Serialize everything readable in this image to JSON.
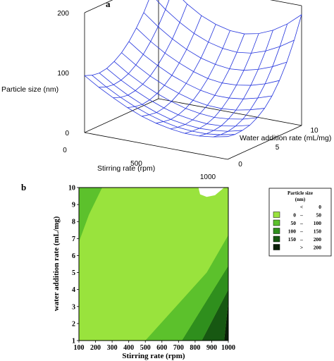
{
  "chart_data": [
    {
      "panel": "a",
      "type": "surface3d",
      "xlabel": "Stirring rate (rpm)",
      "ylabel": "Water addition rate (mL/mg)",
      "zlabel": "Particle size (nm)",
      "x_ticks": [
        "0",
        "500",
        "1000"
      ],
      "y_ticks": [
        "0",
        "5",
        "10"
      ],
      "z_ticks": [
        "0",
        "100",
        "200"
      ],
      "xlim": [
        0,
        1000
      ],
      "ylim": [
        0,
        10
      ],
      "zlim": [
        0,
        200
      ],
      "surface": {
        "x": [
          0,
          100,
          200,
          300,
          400,
          500,
          600,
          700,
          800,
          900,
          1000
        ],
        "y": [
          0,
          1,
          2,
          3,
          4,
          5,
          6,
          7,
          8,
          9,
          10
        ],
        "z": [
          [
            95,
            80,
            67,
            55,
            45,
            38,
            33,
            30,
            30,
            33,
            38
          ],
          [
            90,
            75,
            62,
            51,
            42,
            35,
            30,
            28,
            28,
            31,
            36
          ],
          [
            88,
            73,
            60,
            49,
            40,
            33,
            29,
            27,
            28,
            31,
            37
          ],
          [
            90,
            75,
            62,
            51,
            42,
            35,
            31,
            29,
            30,
            34,
            40
          ],
          [
            96,
            80,
            67,
            56,
            47,
            40,
            36,
            34,
            36,
            40,
            47
          ],
          [
            105,
            89,
            75,
            64,
            55,
            48,
            44,
            43,
            45,
            50,
            57
          ],
          [
            118,
            101,
            87,
            75,
            66,
            59,
            55,
            55,
            58,
            64,
            72
          ],
          [
            135,
            117,
            102,
            90,
            80,
            73,
            70,
            71,
            75,
            82,
            92
          ],
          [
            155,
            136,
            120,
            107,
            97,
            91,
            88,
            90,
            96,
            105,
            117
          ],
          [
            180,
            159,
            142,
            128,
            118,
            112,
            110,
            113,
            121,
            133,
            148
          ],
          [
            208,
            186,
            167,
            152,
            142,
            136,
            135,
            140,
            150,
            165,
            185
          ]
        ],
        "mesh_color": "#2233dd"
      }
    },
    {
      "panel": "b",
      "type": "contour",
      "xlabel": "Stirring rate (rpm)",
      "ylabel": "water addition rate (mL/mg)",
      "x_ticks": [
        100,
        200,
        300,
        400,
        500,
        600,
        700,
        800,
        900,
        1000
      ],
      "y_ticks": [
        1,
        2,
        3,
        4,
        5,
        6,
        7,
        8,
        9,
        10
      ],
      "xlim": [
        100,
        1000
      ],
      "ylim": [
        1,
        10
      ],
      "legend": {
        "title": [
          "Particle size",
          "(nm)"
        ],
        "placement": "right",
        "entries": [
          {
            "lo": "",
            "op": "<",
            "hi": "0",
            "color": "#ffffff"
          },
          {
            "lo": "0",
            "op": "–",
            "hi": "50",
            "color": "#99e33d"
          },
          {
            "lo": "50",
            "op": "–",
            "hi": "100",
            "color": "#5cc12c"
          },
          {
            "lo": "100",
            "op": "–",
            "hi": "150",
            "color": "#2f8f1d"
          },
          {
            "lo": "150",
            "op": "–",
            "hi": "200",
            "color": "#175812"
          },
          {
            "lo": "",
            "op": ">",
            "hi": "200",
            "color": "#0a2008"
          }
        ]
      },
      "regions": [
        {
          "range": "> 200",
          "color": "#0a2008",
          "polygon": [
            [
              975,
              1
            ],
            [
              1000,
              1
            ],
            [
              1000,
              3.3
            ]
          ]
        },
        {
          "range": "150 – 200",
          "color": "#175812",
          "polygon": [
            [
              840,
              1
            ],
            [
              975,
              1
            ],
            [
              1000,
              3.3
            ],
            [
              1000,
              4.0
            ]
          ]
        },
        {
          "range": "100 – 150",
          "color": "#2f8f1d",
          "polygon": [
            [
              720,
              1
            ],
            [
              840,
              1
            ],
            [
              1000,
              4.0
            ],
            [
              1000,
              5.4
            ]
          ]
        },
        {
          "range": "50 – 100",
          "color": "#5cc12c",
          "polygon": [
            [
              500,
              1
            ],
            [
              720,
              1
            ],
            [
              1000,
              5.4
            ],
            [
              1000,
              7.2
            ],
            [
              870,
              5.0
            ]
          ]
        },
        {
          "range": "50 – 100",
          "color": "#5cc12c",
          "polygon": [
            [
              100,
              6.8
            ],
            [
              130,
              7.6
            ],
            [
              160,
              8.4
            ],
            [
              200,
              9.2
            ],
            [
              240,
              10
            ],
            [
              100,
              10
            ]
          ]
        },
        {
          "range": "< 0",
          "color": "#ffffff",
          "polygon": [
            [
              820,
              10
            ],
            [
              830,
              9.6
            ],
            [
              870,
              9.45
            ],
            [
              920,
              9.55
            ],
            [
              975,
              10
            ]
          ]
        }
      ],
      "background_color": "#99e33d"
    }
  ],
  "labels": {
    "panel_a": "a",
    "panel_b": "b"
  }
}
